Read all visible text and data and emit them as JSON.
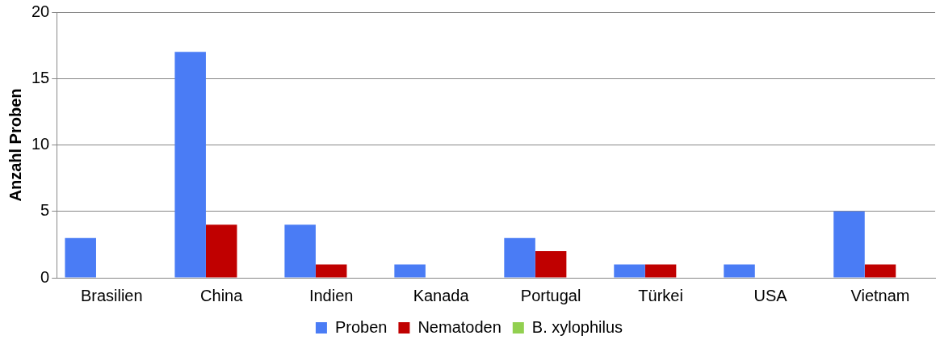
{
  "chart_data": {
    "type": "bar",
    "ylabel": "Anzahl Proben",
    "categories": [
      "Brasilien",
      "China",
      "Indien",
      "Kanada",
      "Portugal",
      "Türkei",
      "USA",
      "Vietnam"
    ],
    "series": [
      {
        "name": "Proben",
        "color": "#4a7cf5",
        "values": [
          3,
          17,
          4,
          1,
          3,
          1,
          1,
          5
        ]
      },
      {
        "name": "Nematoden",
        "color": "#c00000",
        "values": [
          0,
          4,
          1,
          0,
          2,
          1,
          0,
          1
        ]
      },
      {
        "name": "B. xylophilus",
        "color": "#92d050",
        "values": [
          0,
          0,
          0,
          0,
          0,
          0,
          0,
          0
        ]
      }
    ],
    "ylim": [
      0,
      20
    ],
    "yticks": [
      0,
      5,
      10,
      15,
      20
    ],
    "grid": "y",
    "legend": "bottom"
  }
}
